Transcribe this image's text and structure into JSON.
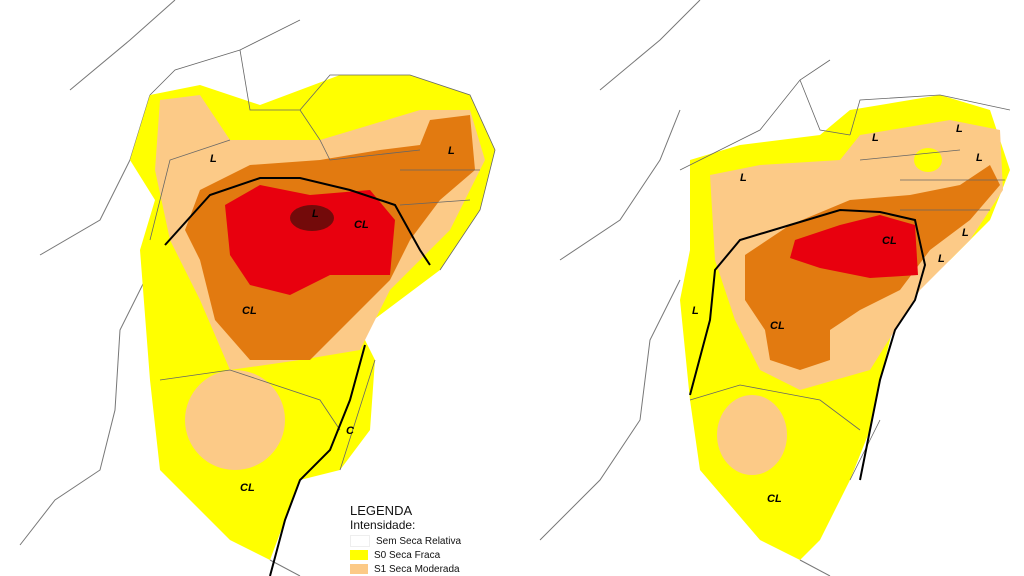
{
  "colors": {
    "none": "#ffffff",
    "s0": "#ffff00",
    "s1": "#fcca87",
    "s2": "#e27a10",
    "s3": "#e8000e",
    "s4": "#730a0a"
  },
  "left_map": {
    "labels": [
      "L",
      "L",
      "L",
      "CL",
      "CL",
      "C",
      "CL"
    ]
  },
  "right_map": {
    "labels": [
      "L",
      "L",
      "L",
      "L",
      "L",
      "CL",
      "L",
      "L",
      "CL",
      "CL"
    ]
  },
  "legend": {
    "title": "LEGENDA",
    "subtitle": "Intensidade:",
    "items": [
      {
        "label": "Sem Seca Relativa",
        "color": "#ffffff"
      },
      {
        "label": "S0 Seca Fraca",
        "color": "#ffff00"
      },
      {
        "label": "S1 Seca Moderada",
        "color": "#fcca87"
      }
    ]
  }
}
